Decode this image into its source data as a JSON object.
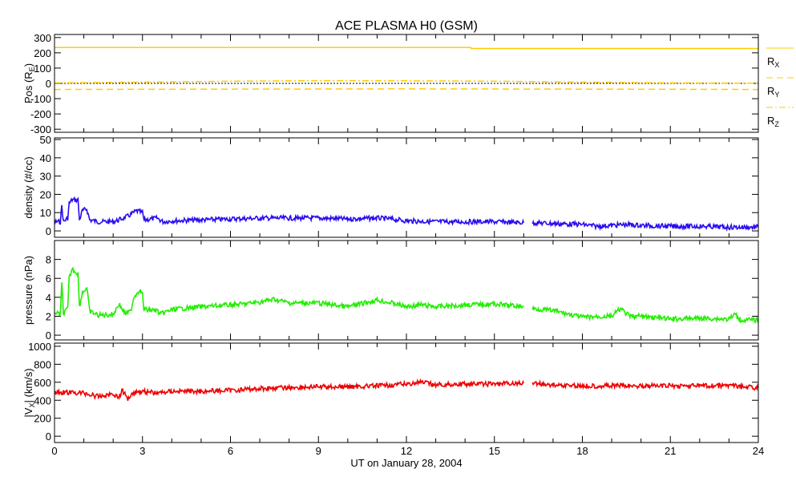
{
  "chart_data": {
    "type": "line",
    "title": "ACE PLASMA H0 (GSM)",
    "xlabel": "UT on January 28, 2004",
    "xlim": [
      0,
      24
    ],
    "xticks": [
      0,
      3,
      6,
      9,
      12,
      15,
      18,
      21,
      24
    ],
    "panels": [
      {
        "id": "pos",
        "ylabel": {
          "main": "Pos (R",
          "sub": "E",
          "end": ")"
        },
        "ylim": [
          -320,
          320
        ],
        "yticks": [
          300,
          200,
          100,
          0,
          -100,
          -200,
          -300
        ],
        "zero_line": true,
        "series": [
          {
            "name": "RX",
            "label_main": "R",
            "label_sub": "X",
            "color": "#ffcc00",
            "style": "solid",
            "x": [
              0,
              14.2,
              14.21,
              24
            ],
            "y": [
              235,
              235,
              228,
              228
            ]
          },
          {
            "name": "RY",
            "label_main": "R",
            "label_sub": "Y",
            "color": "#ffcc00",
            "style": "dashed",
            "x": [
              0,
              6,
              12,
              18,
              24
            ],
            "y": [
              -40,
              -38,
              -36,
              -38,
              -40
            ]
          },
          {
            "name": "RZ",
            "label_main": "R",
            "label_sub": "Z",
            "color": "#ffcc00",
            "style": "dashdot",
            "x": [
              0,
              3,
              6,
              9,
              12,
              15,
              18,
              21,
              24
            ],
            "y": [
              3,
              8,
              14,
              18,
              17,
              14,
              8,
              3,
              1
            ]
          }
        ]
      },
      {
        "id": "density",
        "ylabel": {
          "main": "density (#/cc)"
        },
        "ylim": [
          -3.5,
          50.9
        ],
        "yticks": [
          0,
          10,
          20,
          30,
          40,
          50
        ],
        "series": [
          {
            "name": "density",
            "color": "#2a0cf0",
            "x": [
              0,
              0.2,
              0.25,
              0.3,
              0.45,
              0.5,
              0.6,
              0.8,
              0.85,
              0.95,
              1.1,
              1.2,
              1.5,
              2,
              2.2,
              2.5,
              2.8,
              3.0,
              3.05,
              3.5,
              3.7,
              4,
              5,
              6,
              7,
              8,
              9,
              10,
              11,
              11.5,
              12,
              13,
              14,
              15,
              16,
              null,
              16.3,
              17,
              18,
              18.5,
              19,
              19.5,
              20,
              21,
              22,
              23,
              24
            ],
            "y": [
              5,
              5,
              14,
              5,
              7,
              15,
              17,
              17,
              6,
              11,
              12,
              6,
              5,
              5,
              6,
              8,
              11,
              10,
              6,
              7,
              5,
              5.5,
              6,
              6.5,
              7,
              7,
              7,
              6.5,
              7,
              6.5,
              5.5,
              5,
              5,
              5,
              4.5,
              null,
              4.5,
              4,
              3.5,
              2.5,
              3,
              3.5,
              3,
              2.5,
              2.5,
              2,
              2
            ]
          }
        ]
      },
      {
        "id": "pressure",
        "ylabel": {
          "main": "pressure (nPa)"
        },
        "ylim": [
          -0.5,
          10
        ],
        "yticks": [
          0,
          2,
          4,
          6,
          8
        ],
        "series": [
          {
            "name": "pressure",
            "color": "#22ee00",
            "x": [
              0,
              0.2,
              0.25,
              0.3,
              0.45,
              0.5,
              0.6,
              0.8,
              0.85,
              0.95,
              1.1,
              1.2,
              1.5,
              2,
              2.2,
              2.4,
              2.6,
              2.7,
              2.9,
              3.0,
              3.05,
              3.5,
              3.6,
              4,
              5,
              6,
              6.5,
              7,
              7.5,
              8,
              9,
              10,
              11,
              11.5,
              12,
              12.5,
              13,
              14,
              15,
              16,
              null,
              16.3,
              17,
              18,
              19,
              19.3,
              19.6,
              20,
              21,
              22,
              23,
              23.2,
              23.4,
              24
            ],
            "y": [
              2.4,
              2.2,
              5.5,
              2.3,
              2.8,
              6,
              7,
              6.5,
              3,
              4.5,
              5,
              2.5,
              2.1,
              2.2,
              3.3,
              2.3,
              2.5,
              4,
              4.8,
              4.3,
              2.7,
              2.6,
              2.2,
              2.7,
              3,
              3.2,
              3.3,
              3.5,
              3.8,
              3.4,
              3.4,
              3,
              3.7,
              3.4,
              3,
              3.2,
              3,
              3.2,
              3.3,
              3,
              null,
              2.8,
              2.6,
              1.9,
              2,
              2.8,
              2,
              2,
              1.7,
              1.8,
              1.7,
              2.2,
              1.6,
              1.6
            ]
          }
        ]
      },
      {
        "id": "vx",
        "ylabel": {
          "main": "|V",
          "sub": "X",
          "end": "| (km/s)"
        },
        "ylim": [
          -70,
          1035
        ],
        "yticks": [
          0,
          200,
          400,
          600,
          800,
          1000
        ],
        "series": [
          {
            "name": "|Vx|",
            "color": "#ee0000",
            "x": [
              0,
              1,
              1.5,
              2,
              2.2,
              2.3,
              2.5,
              2.7,
              3,
              3.5,
              4,
              5,
              6,
              7,
              8,
              9,
              10,
              11,
              12,
              12.5,
              13,
              14,
              15,
              16,
              null,
              16.3,
              17,
              18,
              19,
              20,
              21,
              22,
              23,
              23.1,
              23.3,
              24
            ],
            "y": [
              490,
              480,
              440,
              470,
              430,
              510,
              420,
              490,
              500,
              480,
              500,
              500,
              510,
              530,
              540,
              550,
              550,
              560,
              580,
              600,
              570,
              580,
              580,
              590,
              null,
              590,
              570,
              560,
              560,
              560,
              560,
              560,
              560,
              590,
              550,
              540
            ]
          }
        ]
      }
    ]
  }
}
